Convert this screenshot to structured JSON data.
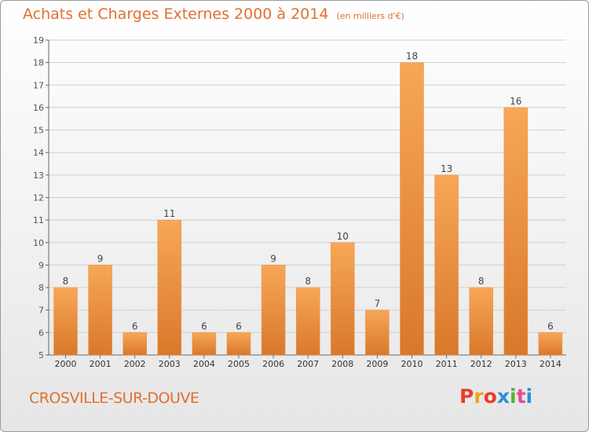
{
  "title": "Achats et Charges Externes 2000 à 2014",
  "unit": "(en milliers d'€)",
  "commune": "CROSVILLE-SUR-DOUVE",
  "logo": {
    "text": "Proxiti",
    "colors": [
      "#e8412b",
      "#f0a21a",
      "#ef3a2e",
      "#2f8fd6",
      "#56b437",
      "#e84a8f",
      "#2f8fd6"
    ]
  },
  "colors": {
    "bar_top": "#f7a757",
    "bar_bottom": "#d9782a",
    "title": "#e0702f",
    "axis": "#666666",
    "grid": "#d0d0d0"
  },
  "chart_data": {
    "type": "bar",
    "categories": [
      "2000",
      "2001",
      "2002",
      "2003",
      "2004",
      "2005",
      "2006",
      "2007",
      "2008",
      "2009",
      "2010",
      "2011",
      "2012",
      "2013",
      "2014"
    ],
    "values": [
      8,
      9,
      6,
      11,
      6,
      6,
      9,
      8,
      10,
      7,
      18,
      13,
      8,
      16,
      6
    ],
    "ylim": [
      5,
      19
    ],
    "yticks": [
      5,
      6,
      7,
      8,
      9,
      10,
      11,
      12,
      13,
      14,
      15,
      16,
      17,
      18,
      19
    ],
    "grid": true,
    "xlabel": "",
    "ylabel": ""
  }
}
